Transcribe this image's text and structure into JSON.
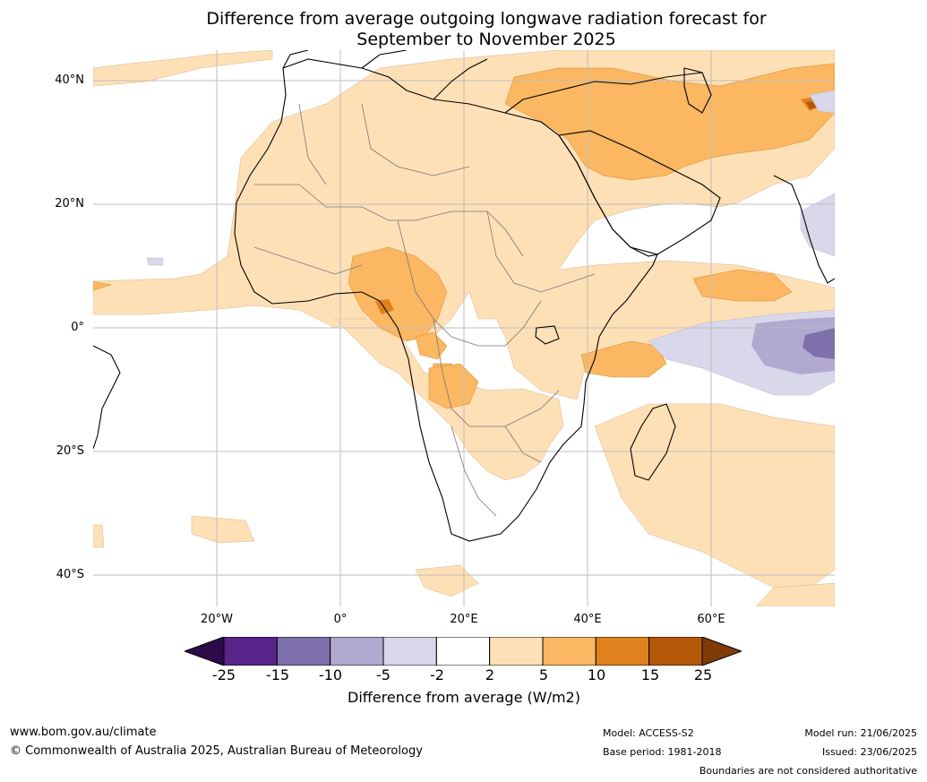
{
  "title": {
    "line1": "Difference from average outgoing longwave radiation forecast for",
    "line2": "September to November 2025"
  },
  "axes": {
    "lat_labels": [
      "40°N",
      "20°N",
      "0°",
      "20°S",
      "40°S"
    ],
    "lon_labels": [
      "20°W",
      "0°",
      "20°E",
      "40°E",
      "60°E"
    ]
  },
  "colorbar": {
    "ticks": [
      "-25",
      "-15",
      "-10",
      "-5",
      "-2",
      "2",
      "5",
      "10",
      "15",
      "25"
    ],
    "title": "Difference from average (W/m2)",
    "colors": [
      "#2d0a4a",
      "#58248a",
      "#7e70aa",
      "#b1a9d0",
      "#d8d8ea",
      "#ffffff",
      "#fee0b6",
      "#fbb761",
      "#e0811e",
      "#b35809",
      "#7f3b08"
    ]
  },
  "footer": {
    "website": "www.bom.gov.au/climate",
    "copyright": "© Commonwealth of Australia 2025, Australian Bureau of Meteorology",
    "model": "Model: ACCESS-S2",
    "base_period": "Base period: 1981-2018",
    "model_run": "Model run: 21/06/2025",
    "issued": "Issued: 23/06/2025",
    "disclaimer": "Boundaries are not considered authoritative"
  }
}
